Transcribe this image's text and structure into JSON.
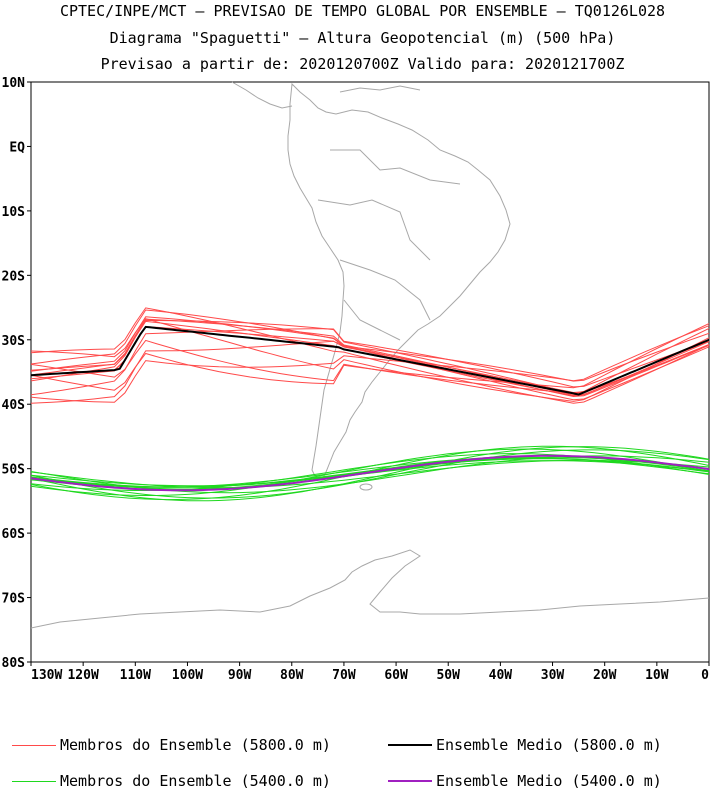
{
  "header": {
    "line1": "CPTEC/INPE/MCT — PREVISAO DE TEMPO GLOBAL POR ENSEMBLE — TQ0126L028",
    "line2": "Diagrama \"Spaguetti\" — Altura Geopotencial (m) (500 hPa)",
    "line3": "Previsao a partir de: 2020120700Z  Valido para: 2020121700Z"
  },
  "map": {
    "lat_labels": [
      "10N",
      "EQ",
      "10S",
      "20S",
      "30S",
      "40S",
      "50S",
      "60S",
      "70S",
      "80S"
    ],
    "lon_labels": [
      "130W",
      "120W",
      "110W",
      "100W",
      "90W",
      "80W",
      "70W",
      "60W",
      "50W",
      "40W",
      "30W",
      "20W",
      "10W",
      "0"
    ],
    "lat_range": [
      10,
      -80
    ],
    "lon_range": [
      -130,
      0
    ],
    "colors": {
      "members_5800": "#ff4a4a",
      "mean_5800": "#000000",
      "members_5400": "#1fd81f",
      "mean_5400": "#a020c0",
      "coastline": "#a8a8a8"
    }
  },
  "legend": {
    "members_5800": "Membros do Ensemble (5800.0 m)",
    "mean_5800": "Ensemble Medio (5800.0 m)",
    "members_5400": "Membros do Ensemble (5400.0 m)",
    "mean_5400": "Ensemble Medio (5400.0 m)"
  }
}
